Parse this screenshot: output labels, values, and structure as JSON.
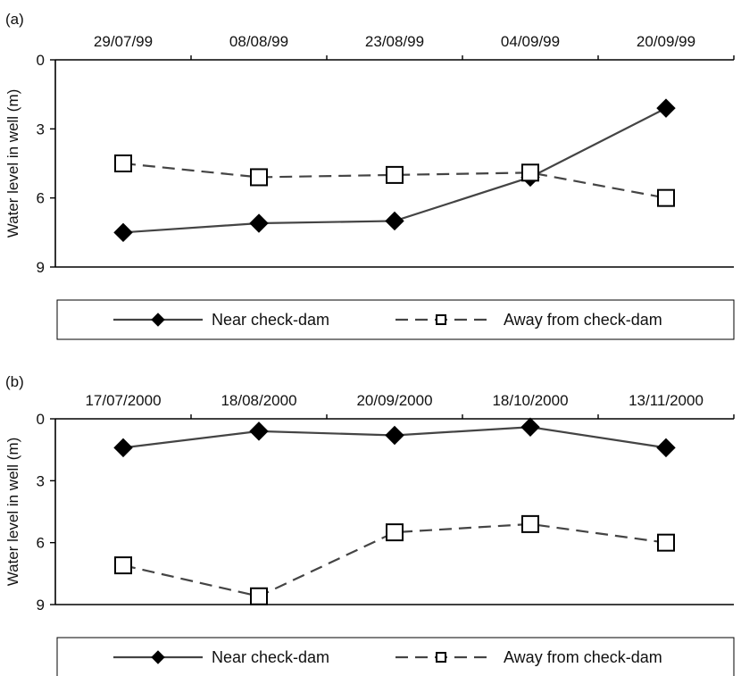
{
  "chart_data": [
    {
      "panel_label": "(a)",
      "type": "line",
      "categories": [
        "29/07/99",
        "08/08/99",
        "23/08/99",
        "04/09/99",
        "20/09/99"
      ],
      "ylabel": "Water level in well (m)",
      "ylim": [
        0,
        9
      ],
      "y_inverted": true,
      "x_axis_position": "top",
      "yticks": [
        "0",
        "3",
        "6",
        "9"
      ],
      "grid": false,
      "legend_position": "bottom",
      "series": [
        {
          "name": "Near check-dam",
          "marker": "filled-diamond",
          "line": "solid",
          "color": "#444444",
          "values": [
            7.5,
            7.1,
            7.0,
            5.1,
            2.1
          ]
        },
        {
          "name": "Away from check-dam",
          "marker": "open-square",
          "line": "dashed",
          "color": "#444444",
          "values": [
            4.5,
            5.1,
            5.0,
            4.9,
            6.0
          ]
        }
      ]
    },
    {
      "panel_label": "(b)",
      "type": "line",
      "categories": [
        "17/07/2000",
        "18/08/2000",
        "20/09/2000",
        "18/10/2000",
        "13/11/2000"
      ],
      "ylabel": "Water level in well (m)",
      "ylim": [
        0,
        9
      ],
      "y_inverted": true,
      "x_axis_position": "top",
      "yticks": [
        "0",
        "3",
        "6",
        "9"
      ],
      "grid": false,
      "legend_position": "bottom",
      "series": [
        {
          "name": "Near check-dam",
          "marker": "filled-diamond",
          "line": "solid",
          "color": "#444444",
          "values": [
            1.4,
            0.6,
            0.8,
            0.4,
            1.4
          ]
        },
        {
          "name": "Away from check-dam",
          "marker": "open-square",
          "line": "dashed",
          "color": "#444444",
          "values": [
            7.1,
            8.6,
            5.5,
            5.1,
            6.0
          ]
        }
      ]
    }
  ]
}
